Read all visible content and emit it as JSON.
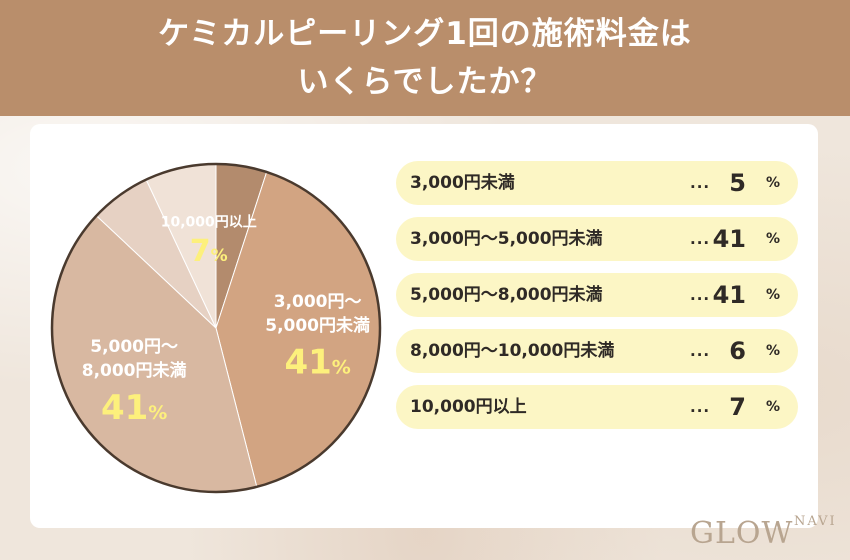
{
  "header": {
    "title_line1": "ケミカルピーリング1回の施術料金は",
    "title_line2": "いくらでしたか？"
  },
  "chart_data": {
    "type": "pie",
    "unit": "%",
    "slices": [
      {
        "label": "3,000円未満",
        "value": 5,
        "color": "#b38b6d"
      },
      {
        "label": "3,000円～5,000円未満",
        "label_lines": [
          "3,000円～",
          "5,000円未満"
        ],
        "value": 41,
        "color": "#d2a482"
      },
      {
        "label": "5,000円～8,000円未満",
        "label_lines": [
          "5,000円～",
          "8,000円未満"
        ],
        "value": 41,
        "color": "#d8b8a1"
      },
      {
        "label": "8,000円～10,000円未満",
        "value": 6,
        "color": "#e6d1c3"
      },
      {
        "label": "10,000円以上",
        "label_lines": [
          "10,000円以上"
        ],
        "value": 7,
        "color": "#f0e2d7"
      }
    ]
  },
  "legend": {
    "dots": "...",
    "unit": "%"
  },
  "colors": {
    "header_bg": "#b98e6b",
    "highlight_text": "#fdf07c",
    "legend_row_bg": "#fcf6c5"
  },
  "logo": {
    "main": "GLOW",
    "small": "NAVI"
  }
}
